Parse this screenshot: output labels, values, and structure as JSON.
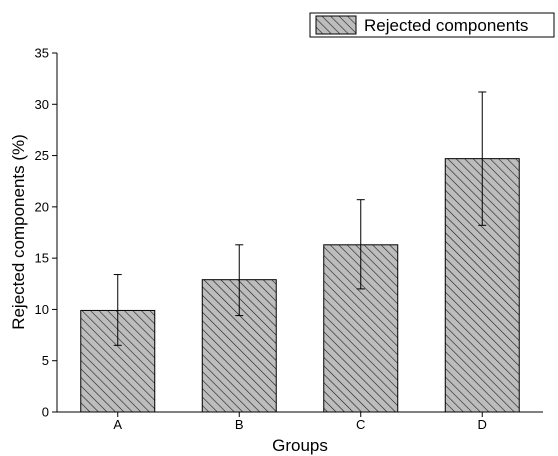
{
  "chart_data": {
    "type": "bar",
    "categories": [
      "A",
      "B",
      "C",
      "D"
    ],
    "series": [
      {
        "name": "Rejected components",
        "values": [
          9.9,
          12.9,
          16.3,
          24.7
        ],
        "error_low": [
          6.5,
          9.4,
          12.0,
          18.2
        ],
        "error_high": [
          13.4,
          16.3,
          20.7,
          31.2
        ]
      }
    ],
    "title": "",
    "xlabel": "Groups",
    "ylabel": "Rejected components (%)",
    "ylim": [
      0,
      35
    ],
    "yticks": [
      0,
      5,
      10,
      15,
      20,
      25,
      30,
      35
    ],
    "grid": false,
    "legend_position": "top-right",
    "bar_pattern": "diagonal-hatch",
    "colors": {
      "bar_fill": "#bdbdbd",
      "hatch": "#1a1a1a",
      "outline": "#000000"
    }
  }
}
